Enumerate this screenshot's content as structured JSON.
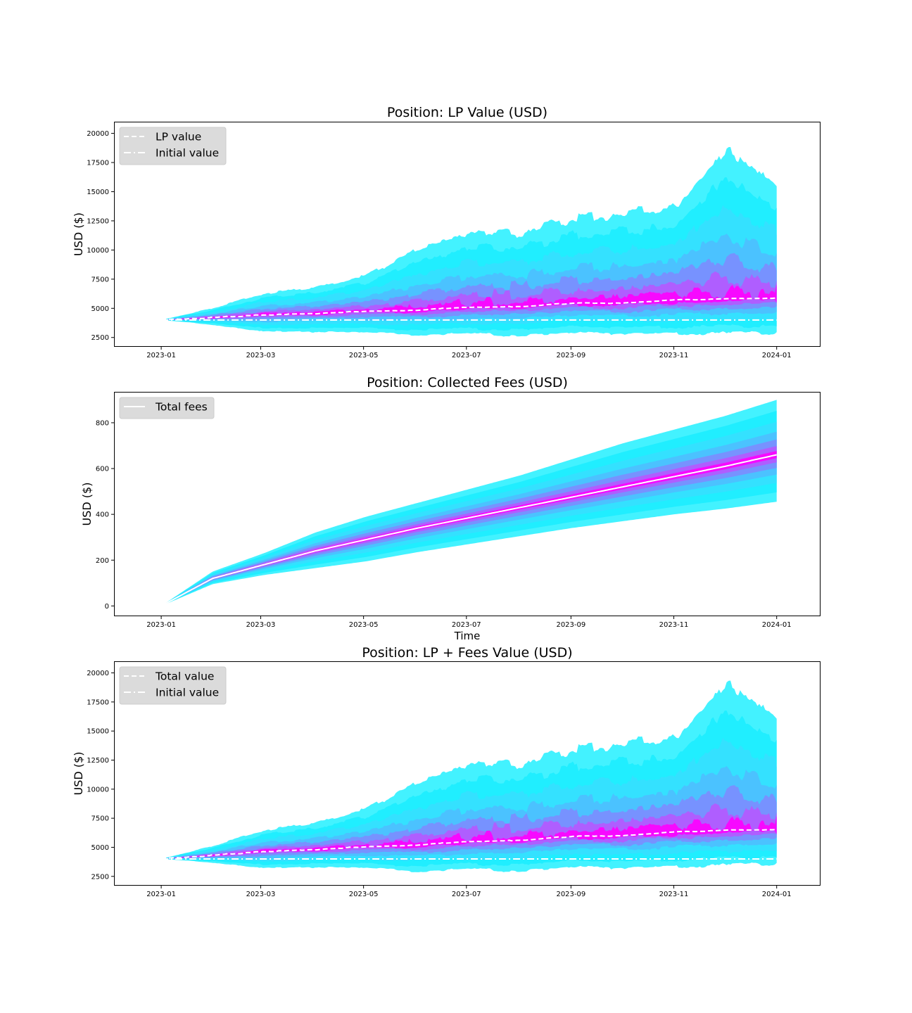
{
  "chart_data": [
    {
      "type": "area",
      "title": "Position: LP Value (USD)",
      "xlabel": "",
      "ylabel": "USD ($)",
      "x_ticks": [
        "2023-01",
        "2023-03",
        "2023-05",
        "2023-07",
        "2023-09",
        "2023-11",
        "2024-01"
      ],
      "y_ticks": [
        "2500",
        "5000",
        "7500",
        "10000",
        "12500",
        "15000",
        "17500",
        "20000"
      ],
      "ylim": [
        1700,
        21000
      ],
      "xlim": [
        "2022-12-04",
        "2024-01-27"
      ],
      "legend": {
        "position": "top-left",
        "entries": [
          {
            "label": "LP value",
            "style": "dashed"
          },
          {
            "label": "Initial value",
            "style": "dashdot"
          }
        ]
      },
      "x": [
        "2023-01",
        "2023-02",
        "2023-03",
        "2023-04",
        "2023-05",
        "2023-06",
        "2023-07",
        "2023-08",
        "2023-09",
        "2023-10",
        "2023-11",
        "2023-12",
        "2024-01"
      ],
      "series": [
        {
          "name": "LP value",
          "values": [
            4000,
            4200,
            4450,
            4550,
            4750,
            4850,
            5100,
            5150,
            5450,
            5450,
            5700,
            5800,
            5900
          ]
        },
        {
          "name": "Initial value",
          "values": [
            4000,
            4000,
            4000,
            4000,
            4000,
            4000,
            4000,
            4000,
            4000,
            4000,
            4000,
            4000,
            4000
          ]
        }
      ],
      "envelope": {
        "upper": [
          4000,
          5000,
          6300,
          6800,
          7800,
          10100,
          11600,
          11500,
          12700,
          13200,
          13700,
          18500,
          15600
        ],
        "lower": [
          4000,
          3600,
          3000,
          3000,
          2900,
          2700,
          2800,
          2700,
          2900,
          2800,
          2800,
          2900,
          2900
        ]
      },
      "colors": {
        "outer": "#00ffff",
        "middle": "#7f7fff",
        "inner": "#ff00ff",
        "line": "#ffffff"
      }
    },
    {
      "type": "area",
      "title": "Position: Collected Fees (USD)",
      "xlabel": "Time",
      "ylabel": "USD ($)",
      "x_ticks": [
        "2023-01",
        "2023-03",
        "2023-05",
        "2023-07",
        "2023-09",
        "2023-11",
        "2024-01"
      ],
      "y_ticks": [
        "0",
        "200",
        "400",
        "600",
        "800"
      ],
      "ylim": [
        -45,
        935
      ],
      "xlim": [
        "2022-12-04",
        "2024-01-27"
      ],
      "legend": {
        "position": "top-left",
        "entries": [
          {
            "label": "Total fees",
            "style": "solid"
          }
        ]
      },
      "x": [
        "2023-01",
        "2023-02",
        "2023-03",
        "2023-04",
        "2023-05",
        "2023-06",
        "2023-07",
        "2023-08",
        "2023-09",
        "2023-10",
        "2023-11",
        "2023-12",
        "2024-01"
      ],
      "series": [
        {
          "name": "Total fees",
          "values": [
            0,
            120,
            180,
            240,
            290,
            340,
            385,
            430,
            475,
            520,
            565,
            610,
            660
          ]
        }
      ],
      "envelope": {
        "upper": [
          0,
          150,
          230,
          320,
          390,
          450,
          510,
          570,
          640,
          710,
          770,
          830,
          900
        ],
        "lower": [
          0,
          95,
          135,
          165,
          195,
          235,
          270,
          305,
          340,
          370,
          400,
          425,
          455
        ]
      },
      "colors": {
        "outer": "#00ffff",
        "middle": "#7f7fff",
        "inner": "#ff00ff",
        "line": "#ffffff"
      }
    },
    {
      "type": "area",
      "title": "Position: LP + Fees Value (USD)",
      "xlabel": "",
      "ylabel": "USD ($)",
      "x_ticks": [
        "2023-01",
        "2023-03",
        "2023-05",
        "2023-07",
        "2023-09",
        "2023-11",
        "2024-01"
      ],
      "y_ticks": [
        "2500",
        "5000",
        "7500",
        "10000",
        "12500",
        "15000",
        "17500",
        "20000"
      ],
      "ylim": [
        1700,
        21000
      ],
      "xlim": [
        "2022-12-04",
        "2024-01-27"
      ],
      "legend": {
        "position": "top-left",
        "entries": [
          {
            "label": "Total value",
            "style": "dashed"
          },
          {
            "label": "Initial value",
            "style": "dashdot"
          }
        ]
      },
      "x": [
        "2023-01",
        "2023-02",
        "2023-03",
        "2023-04",
        "2023-05",
        "2023-06",
        "2023-07",
        "2023-08",
        "2023-09",
        "2023-10",
        "2023-11",
        "2023-12",
        "2024-01"
      ],
      "series": [
        {
          "name": "Total value",
          "values": [
            4000,
            4300,
            4650,
            4800,
            5050,
            5200,
            5500,
            5600,
            5950,
            6000,
            6300,
            6450,
            6550
          ]
        },
        {
          "name": "Initial value",
          "values": [
            4000,
            4000,
            4000,
            4000,
            4000,
            4000,
            4000,
            4000,
            4000,
            4000,
            4000,
            4000,
            4000
          ]
        }
      ],
      "envelope": {
        "upper": [
          4000,
          5100,
          6500,
          7100,
          8300,
          10600,
          12300,
          12200,
          13400,
          14000,
          14400,
          19000,
          16200
        ],
        "lower": [
          4000,
          3700,
          3200,
          3300,
          3200,
          2900,
          3100,
          3000,
          3300,
          3200,
          3300,
          3500,
          3600
        ]
      },
      "colors": {
        "outer": "#00ffff",
        "middle": "#7f7fff",
        "inner": "#ff00ff",
        "line": "#ffffff"
      }
    }
  ]
}
